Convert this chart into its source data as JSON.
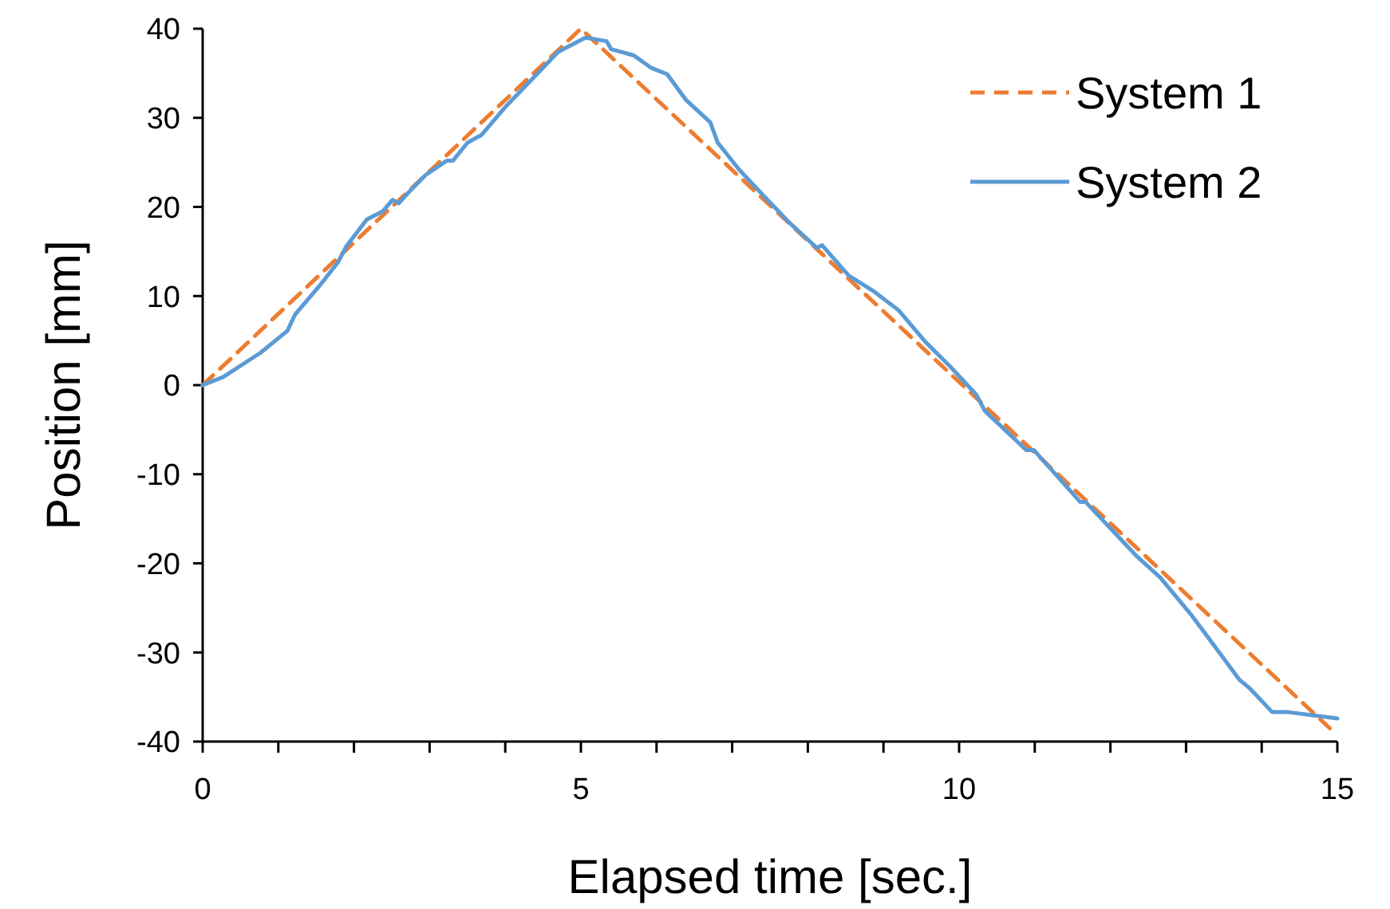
{
  "chart_data": {
    "type": "line",
    "xlabel": "Elapsed time [sec.]",
    "ylabel": "Position [mm]",
    "xlim": [
      0,
      15
    ],
    "ylim": [
      -40,
      40
    ],
    "xticks": [
      0,
      {
        "value": 1,
        "label": null
      },
      {
        "value": 2,
        "label": null
      },
      {
        "value": 3,
        "label": null
      },
      {
        "value": 4,
        "label": null
      },
      5,
      {
        "value": 6,
        "label": null
      },
      {
        "value": 7,
        "label": null
      },
      {
        "value": 8,
        "label": null
      },
      {
        "value": 9,
        "label": null
      },
      10,
      {
        "value": 11,
        "label": null
      },
      {
        "value": 12,
        "label": null
      },
      {
        "value": 13,
        "label": null
      },
      {
        "value": 14,
        "label": null
      },
      15
    ],
    "yticks": [
      -40,
      -30,
      -20,
      -10,
      0,
      10,
      20,
      30,
      40
    ],
    "grid": false,
    "legend": "top right",
    "series": [
      {
        "name": "System 1",
        "color": "#ed7d31",
        "line_style": "dashed",
        "x": [
          0,
          5,
          14.9
        ],
        "values": [
          0,
          40,
          -38.5
        ]
      },
      {
        "name": "System 2",
        "color": "#5b9bd5",
        "line_style": "solid",
        "x": [
          0,
          0.27,
          0.76,
          1.12,
          1.22,
          1.54,
          1.79,
          1.9,
          2.17,
          2.38,
          2.51,
          2.59,
          2.74,
          2.95,
          3.23,
          3.31,
          3.5,
          3.69,
          4.01,
          4.35,
          4.7,
          5.06,
          5.34,
          5.4,
          5.7,
          5.93,
          6.14,
          6.39,
          6.71,
          6.81,
          7.09,
          7.41,
          7.76,
          8.12,
          8.19,
          8.54,
          8.86,
          9.2,
          9.56,
          9.88,
          10.23,
          10.34,
          10.89,
          10.99,
          11.6,
          11.67,
          12.36,
          12.66,
          13.08,
          13.71,
          13.84,
          14.14,
          14.35,
          15
        ],
        "values": [
          0,
          0.9,
          3.6,
          6.1,
          7.9,
          11.1,
          13.8,
          15.6,
          18.6,
          19.5,
          20.8,
          20.4,
          21.8,
          23.6,
          25.2,
          25.2,
          27.2,
          28.1,
          31.3,
          34.3,
          37.4,
          39,
          38.6,
          37.7,
          37,
          35.6,
          34.9,
          32,
          29.5,
          27.2,
          24.2,
          21.3,
          18.2,
          15.4,
          15.7,
          12.3,
          10.6,
          8.4,
          4.8,
          2.1,
          -1.1,
          -2.9,
          -7.3,
          -7.3,
          -13.1,
          -13.1,
          -19.3,
          -21.6,
          -25.9,
          -33.1,
          -34,
          -36.7,
          -36.7,
          -37.4
        ]
      }
    ]
  }
}
